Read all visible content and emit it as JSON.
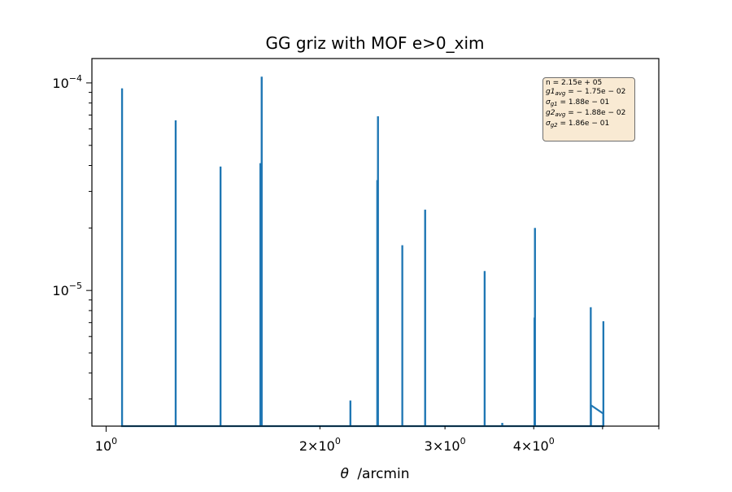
{
  "chart_data": {
    "type": "line",
    "title": "GG griz with MOF e>0_xim",
    "xlabel_symbol": "θ",
    "xlabel_unit": "/arcmin",
    "ylabel": "",
    "xscale": "log",
    "yscale": "log",
    "xlim": [
      0.955,
      6.0
    ],
    "ylim": [
      2.22e-06,
      0.000131
    ],
    "grid": false,
    "x_ticks": [
      {
        "value": 1,
        "base": "10",
        "exp": "0"
      },
      {
        "value": 2,
        "mant": "2",
        "base": "10",
        "exp": "0"
      },
      {
        "value": 3,
        "mant": "3",
        "base": "10",
        "exp": "0"
      },
      {
        "value": 4,
        "mant": "4",
        "base": "10",
        "exp": "0"
      }
    ],
    "y_ticks": [
      {
        "value": 1e-05,
        "base": "10",
        "exp": "−5"
      },
      {
        "value": 0.0001,
        "base": "10",
        "exp": "−4"
      }
    ],
    "line_color": "#1f77b4",
    "series": [
      {
        "values": [
          {
            "x": 1.053,
            "y": 9.4e-05
          },
          {
            "x": 1.253,
            "y": 6.6e-05
          },
          {
            "x": 1.449,
            "y": 3.95e-05
          },
          {
            "x": 1.649,
            "y": 4.1e-05
          },
          {
            "x": 1.656,
            "y": 0.000107
          },
          {
            "x": 2.208,
            "y": 2.95e-06
          },
          {
            "x": 2.409,
            "y": 3.4e-05
          },
          {
            "x": 2.414,
            "y": 6.9e-05
          },
          {
            "x": 2.612,
            "y": 1.65e-05
          },
          {
            "x": 2.813,
            "y": 2.45e-05
          },
          {
            "x": 3.412,
            "y": 1.24e-05
          },
          {
            "x": 3.612,
            "y": 2.3e-06
          },
          {
            "x": 4.01,
            "y": 7.4e-06
          },
          {
            "x": 4.016,
            "y": 2e-05
          },
          {
            "x": 4.813,
            "y": 8.3e-06
          },
          {
            "x": 4.815,
            "y": 2.8e-06
          },
          {
            "x": 5.012,
            "y": 2.55e-06
          },
          {
            "x": 5.014,
            "y": 7.1e-06
          }
        ]
      }
    ]
  },
  "info_box": {
    "lines": [
      {
        "parts": [
          {
            "t": "n = 2.15e + 05",
            "it": false
          }
        ]
      },
      {
        "parts": [
          {
            "t": "g1",
            "it": true
          },
          {
            "t": "avg",
            "sub": true
          },
          {
            "t": " = − 1.75e − 02",
            "it": false
          }
        ]
      },
      {
        "parts": [
          {
            "t": "σ",
            "it": true
          },
          {
            "t": "g1",
            "sub": true
          },
          {
            "t": " = 1.88e − 01",
            "it": false
          }
        ]
      },
      {
        "parts": [
          {
            "t": "g2",
            "it": true
          },
          {
            "t": "avg",
            "sub": true
          },
          {
            "t": " = − 1.88e − 02",
            "it": false
          }
        ]
      },
      {
        "parts": [
          {
            "t": "σ",
            "it": true
          },
          {
            "t": "g2",
            "sub": true
          },
          {
            "t": " = 1.86e − 01",
            "it": false
          }
        ]
      }
    ],
    "background": "#f9ead3",
    "border": "#6e6e6e"
  }
}
